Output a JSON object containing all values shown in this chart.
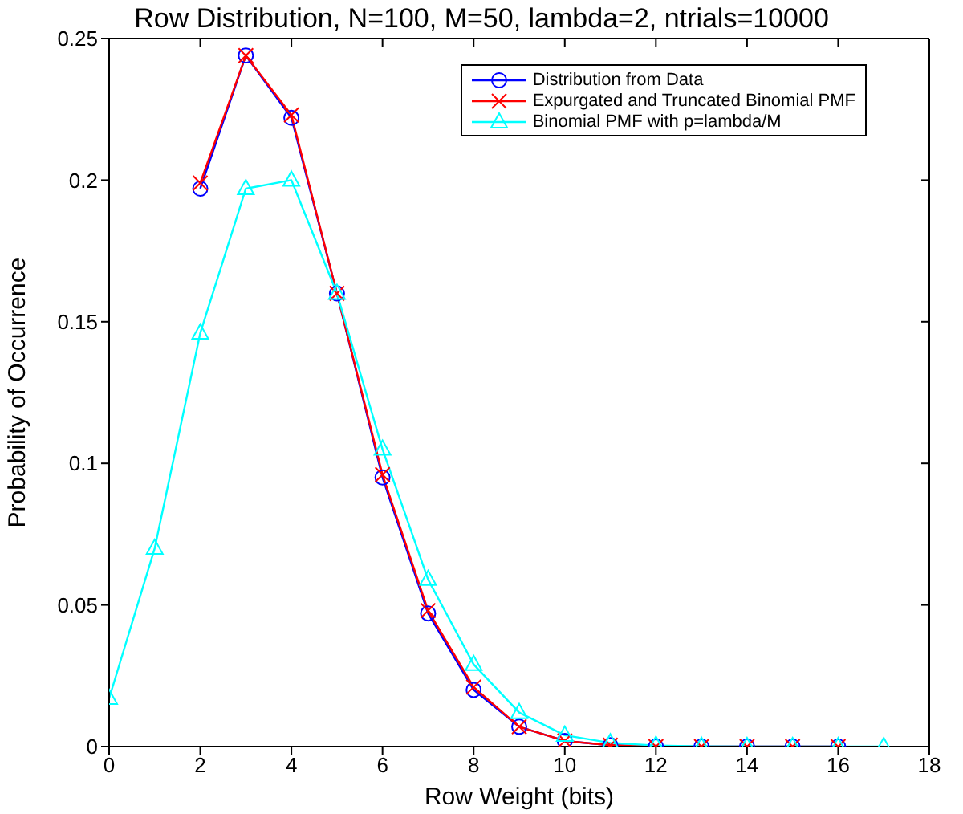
{
  "chart_data": {
    "type": "line",
    "title": "Row Distribution, N=100, M=50, lambda=2, ntrials=10000",
    "xlabel": "Row Weight (bits)",
    "ylabel": "Probability of Occurrence",
    "xlim": [
      0,
      18
    ],
    "xticks": [
      0,
      2,
      4,
      6,
      8,
      10,
      12,
      14,
      16,
      18
    ],
    "ylim": [
      0,
      0.25
    ],
    "yticks": [
      0,
      0.05,
      0.1,
      0.15,
      0.2,
      0.25
    ],
    "legend": "top right",
    "series": [
      {
        "name": "Distribution from Data",
        "color": "#0000ff",
        "marker": "circle",
        "x": [
          2,
          3,
          4,
          5,
          6,
          7,
          8,
          9,
          10,
          11,
          12,
          13,
          14,
          15,
          16
        ],
        "values": [
          0.197,
          0.244,
          0.222,
          0.16,
          0.095,
          0.047,
          0.02,
          0.007,
          0.002,
          0.0005,
          0,
          0,
          0,
          0,
          0
        ]
      },
      {
        "name": "Expurgated and Truncated Binomial PMF",
        "color": "#ff0000",
        "marker": "cross",
        "x": [
          2,
          3,
          4,
          5,
          6,
          7,
          8,
          9,
          10,
          11,
          12,
          13,
          14,
          15,
          16
        ],
        "values": [
          0.199,
          0.244,
          0.223,
          0.16,
          0.096,
          0.048,
          0.021,
          0.007,
          0.002,
          0.0005,
          0,
          0,
          0,
          0,
          0
        ]
      },
      {
        "name": "Binomial PMF with p=lambda/M",
        "color": "#00ffff",
        "marker": "triangle",
        "x": [
          0,
          1,
          2,
          3,
          4,
          5,
          6,
          7,
          8,
          9,
          10,
          11,
          12,
          13,
          14,
          15,
          16,
          17
        ],
        "values": [
          0.017,
          0.07,
          0.146,
          0.197,
          0.2,
          0.16,
          0.105,
          0.059,
          0.029,
          0.012,
          0.004,
          0.0013,
          0.0004,
          0.0001,
          0,
          0,
          0,
          0
        ]
      }
    ]
  }
}
